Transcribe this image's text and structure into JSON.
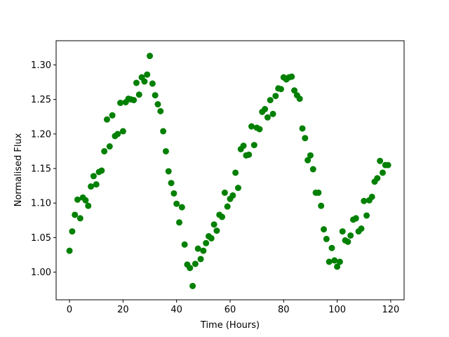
{
  "chart_data": {
    "type": "scatter",
    "title": "",
    "xlabel": "Time (Hours)",
    "ylabel": "Normalised Flux",
    "xlim": [
      -5,
      125
    ],
    "ylim": [
      0.96,
      1.335
    ],
    "xticks": [
      0,
      20,
      40,
      60,
      80,
      100,
      120
    ],
    "yticks": [
      1.0,
      1.05,
      1.1,
      1.15,
      1.2,
      1.25,
      1.3
    ],
    "xtick_labels": [
      "0",
      "20",
      "40",
      "60",
      "80",
      "100",
      "120"
    ],
    "ytick_labels": [
      "1.00",
      "1.05",
      "1.10",
      "1.15",
      "1.20",
      "1.25",
      "1.30"
    ],
    "grid": false,
    "marker_color": "#008000",
    "series": [
      {
        "x": [
          0,
          1,
          2,
          3,
          4,
          5,
          6,
          7,
          8,
          9,
          10,
          11,
          12,
          13,
          14,
          15,
          16,
          17,
          18,
          19,
          20,
          21,
          22,
          23,
          24,
          25,
          26,
          27,
          28,
          29,
          30,
          31,
          32,
          33,
          34,
          35,
          36,
          37,
          38,
          39,
          40,
          41,
          42,
          43,
          44,
          45,
          46,
          47,
          48,
          49,
          50,
          51,
          52,
          53,
          54,
          55,
          56,
          57,
          58,
          59,
          60,
          61,
          62,
          63,
          64,
          65,
          66,
          67,
          68,
          69,
          70,
          71,
          72,
          73,
          74,
          75,
          76,
          77,
          78,
          79,
          80,
          81,
          82,
          83,
          84,
          85,
          86,
          87,
          88,
          89,
          90,
          91,
          92,
          93,
          94,
          95,
          96,
          97,
          98,
          99,
          100,
          101,
          102,
          103,
          104,
          105,
          106,
          107,
          108,
          109,
          110,
          111,
          112,
          113,
          114,
          115,
          116,
          117,
          118,
          119
        ],
        "y": [
          1.031,
          1.059,
          1.083,
          1.105,
          1.078,
          1.108,
          1.104,
          1.096,
          1.124,
          1.139,
          1.127,
          1.145,
          1.147,
          1.175,
          1.221,
          1.182,
          1.227,
          1.197,
          1.2,
          1.245,
          1.204,
          1.246,
          1.251,
          1.25,
          1.249,
          1.274,
          1.257,
          1.282,
          1.276,
          1.286,
          1.313,
          1.273,
          1.256,
          1.243,
          1.233,
          1.204,
          1.175,
          1.146,
          1.129,
          1.114,
          1.099,
          1.072,
          1.094,
          1.04,
          1.011,
          1.006,
          0.98,
          1.012,
          1.034,
          1.019,
          1.031,
          1.042,
          1.052,
          1.049,
          1.069,
          1.06,
          1.083,
          1.08,
          1.115,
          1.095,
          1.106,
          1.111,
          1.144,
          1.122,
          1.178,
          1.183,
          1.169,
          1.17,
          1.211,
          1.184,
          1.209,
          1.207,
          1.232,
          1.236,
          1.224,
          1.249,
          1.229,
          1.255,
          1.266,
          1.265,
          1.282,
          1.279,
          1.282,
          1.283,
          1.263,
          1.256,
          1.251,
          1.208,
          1.194,
          1.162,
          1.169,
          1.149,
          1.115,
          1.115,
          1.096,
          1.062,
          1.048,
          1.015,
          1.035,
          1.017,
          1.008,
          1.015,
          1.059,
          1.046,
          1.044,
          1.053,
          1.076,
          1.078,
          1.059,
          1.063,
          1.103,
          1.082,
          1.104,
          1.109,
          1.131,
          1.136,
          1.161,
          1.144,
          1.155,
          1.155
        ]
      }
    ]
  }
}
